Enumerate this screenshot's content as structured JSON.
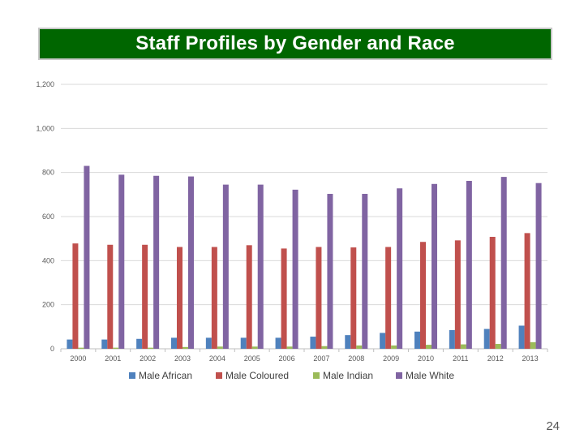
{
  "slide": {
    "title": "Staff Profiles by Gender and Race",
    "page_number": "24"
  },
  "colors": {
    "title_bg": "#006600",
    "gridline": "#d9d9d9"
  },
  "chart_data": {
    "type": "bar",
    "title": "",
    "xlabel": "",
    "ylabel": "",
    "ylim": [
      0,
      1200
    ],
    "yticks": [
      0,
      200,
      400,
      600,
      800,
      1000,
      1200
    ],
    "ytick_labels": [
      "0",
      "200",
      "400",
      "600",
      "800",
      "1,000",
      "1,200"
    ],
    "grid": true,
    "legend_position": "bottom",
    "categories": [
      "2000",
      "2001",
      "2002",
      "2003",
      "2004",
      "2005",
      "2006",
      "2007",
      "2008",
      "2009",
      "2010",
      "2011",
      "2012",
      "2013"
    ],
    "series": [
      {
        "name": "Male African",
        "color": "#4f81bd",
        "values": [
          42,
          42,
          45,
          50,
          50,
          50,
          50,
          55,
          62,
          72,
          78,
          85,
          90,
          105
        ]
      },
      {
        "name": "Male Coloured",
        "color": "#c0504d",
        "values": [
          478,
          472,
          472,
          462,
          462,
          470,
          455,
          462,
          460,
          462,
          485,
          492,
          508,
          525
        ]
      },
      {
        "name": "Male Indian",
        "color": "#9bbb59",
        "values": [
          5,
          5,
          5,
          8,
          10,
          10,
          10,
          12,
          15,
          15,
          18,
          20,
          22,
          30
        ]
      },
      {
        "name": "Male White",
        "color": "#8064a2",
        "values": [
          830,
          790,
          785,
          782,
          745,
          745,
          722,
          703,
          703,
          728,
          748,
          762,
          780,
          752
        ]
      }
    ]
  }
}
